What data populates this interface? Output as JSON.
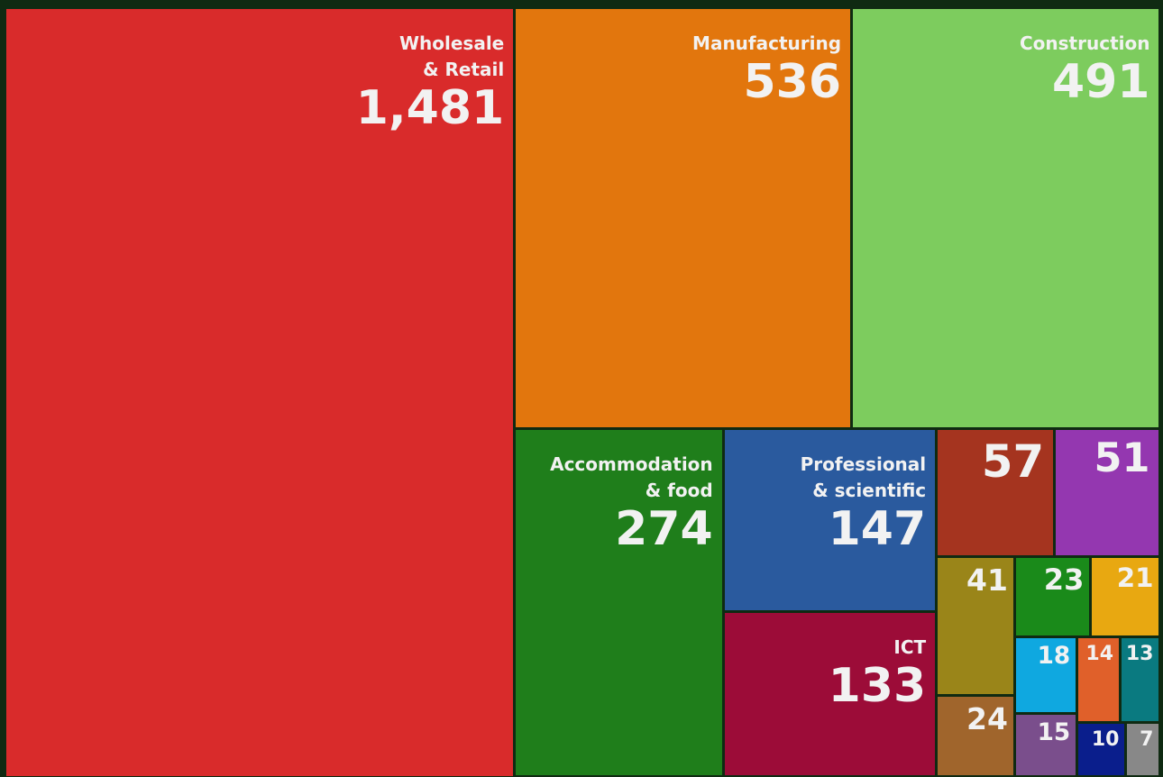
{
  "chart_data": {
    "type": "treemap",
    "categories": [
      "Wholesale\n& Retail",
      "Manufacturing",
      "Construction",
      "Accommodation\n& food",
      "Professional\n& scientific",
      "ICT",
      null,
      null,
      null,
      null,
      null,
      null,
      null,
      null,
      null,
      null,
      null,
      null
    ],
    "values": [
      1481,
      536,
      491,
      274,
      147,
      133,
      57,
      51,
      41,
      23,
      21,
      18,
      14,
      13,
      24,
      15,
      10,
      7
    ],
    "value_labels": [
      "1,481",
      "536",
      "491",
      "274",
      "147",
      "133",
      "57",
      "51",
      "41",
      "23",
      "21",
      "18",
      "14",
      "13",
      "24",
      "15",
      "10",
      "7"
    ],
    "colors": [
      "#d92b2b",
      "#e2760d",
      "#7dcc5e",
      "#1f7e1b",
      "#2a5a9e",
      "#9c0c38",
      "#a5341f",
      "#9437b0",
      "#9a8519",
      "#1a8a1a",
      "#e8a811",
      "#0fa8e0",
      "#e0602a",
      "#0a7a80",
      "#a0652c",
      "#7a4e8c",
      "#0a1e8c",
      "#888888"
    ]
  }
}
